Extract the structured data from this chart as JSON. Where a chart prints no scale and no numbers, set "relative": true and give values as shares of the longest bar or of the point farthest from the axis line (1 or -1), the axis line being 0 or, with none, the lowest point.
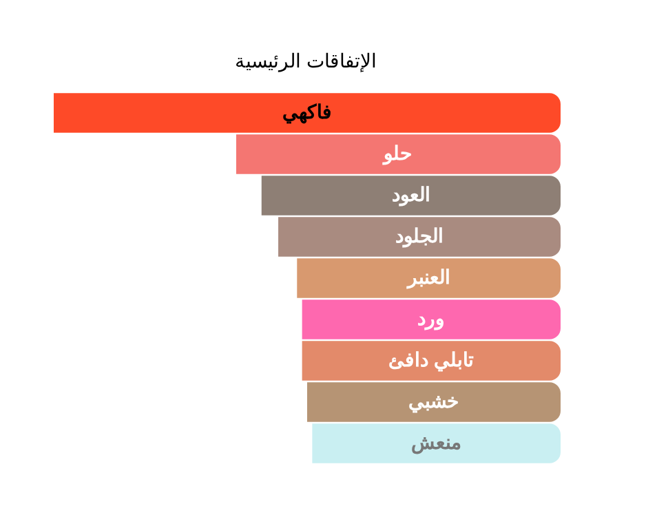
{
  "chart_data": {
    "type": "bar",
    "orientation": "horizontal",
    "relative": true,
    "title": "الإتفاقات الرئيسية",
    "categories": [
      "فاكهي",
      "حلو",
      "العود",
      "الجلود",
      "العنبر",
      "ورد",
      "تابلي دافئ",
      "خشبي",
      "منعش"
    ],
    "values": [
      1,
      0.64,
      0.59,
      0.557,
      0.52,
      0.51,
      0.51,
      0.5,
      0.49
    ],
    "colors": [
      "#fe4a28",
      "#f47672",
      "#8e7f75",
      "#a98b80",
      "#d8996f",
      "#fe68af",
      "#e38a6a",
      "#b69474",
      "#c9eff2"
    ],
    "legend": false,
    "tick_labels": false
  }
}
